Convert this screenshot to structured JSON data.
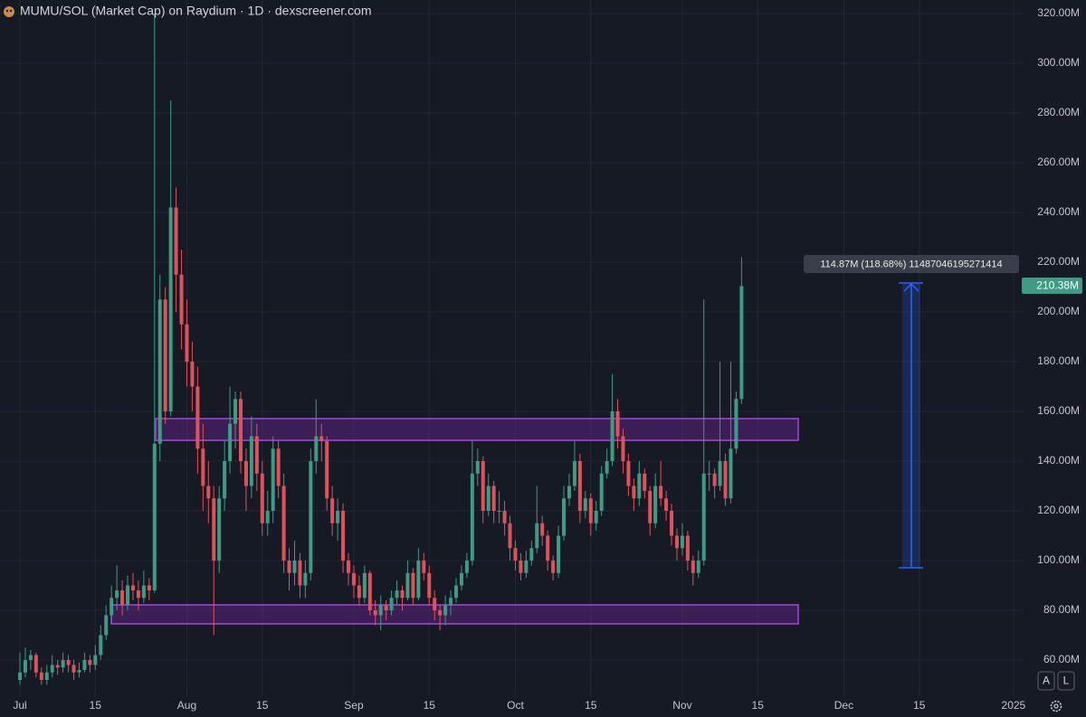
{
  "chart_data": {
    "type": "candlestick",
    "title": "MUMU/SOL (Market Cap) on Raydium · 1D · dexscreener.com",
    "up_color": "#3d9c83",
    "down_color": "#e0525b",
    "grid": true,
    "ylim": [
      45.45,
      325.45
    ],
    "yticks": [
      {
        "value": 60,
        "label": "60.00M"
      },
      {
        "value": 80,
        "label": "80.00M"
      },
      {
        "value": 100,
        "label": "100.00M"
      },
      {
        "value": 120,
        "label": "120.00M"
      },
      {
        "value": 140,
        "label": "140.00M"
      },
      {
        "value": 160,
        "label": "160.00M"
      },
      {
        "value": 180,
        "label": "180.00M"
      },
      {
        "value": 200,
        "label": "200.00M"
      },
      {
        "value": 220,
        "label": "220.00M"
      },
      {
        "value": 240,
        "label": "240.00M"
      },
      {
        "value": 260,
        "label": "260.00M"
      },
      {
        "value": 280,
        "label": "280.00M"
      },
      {
        "value": 300,
        "label": "300.00M"
      },
      {
        "value": 320,
        "label": "320.00M"
      }
    ],
    "xlim": [
      -3.7,
      186.2
    ],
    "xticks": [
      {
        "value": 0,
        "label": "Jul"
      },
      {
        "value": 14,
        "label": "15"
      },
      {
        "value": 31,
        "label": "Aug"
      },
      {
        "value": 45,
        "label": "15"
      },
      {
        "value": 62,
        "label": "Sep"
      },
      {
        "value": 76,
        "label": "15"
      },
      {
        "value": 92,
        "label": "Oct"
      },
      {
        "value": 106,
        "label": "15"
      },
      {
        "value": 123,
        "label": "Nov"
      },
      {
        "value": 137,
        "label": "15"
      },
      {
        "value": 153,
        "label": "Dec"
      },
      {
        "value": 167,
        "label": "15"
      },
      {
        "value": 184.5,
        "label": "2025"
      }
    ],
    "x": [
      0,
      1,
      2,
      3,
      4,
      5,
      6,
      7,
      8,
      9,
      10,
      11,
      12,
      13,
      14,
      15,
      16,
      17,
      18,
      19,
      20,
      21,
      22,
      23,
      24,
      25,
      26,
      27,
      28,
      29,
      30,
      31,
      32,
      33,
      34,
      35,
      36,
      37,
      38,
      39,
      40,
      41,
      42,
      43,
      44,
      45,
      46,
      47,
      48,
      49,
      50,
      51,
      52,
      53,
      54,
      55,
      56,
      57,
      58,
      59,
      60,
      61,
      62,
      63,
      64,
      65,
      66,
      67,
      68,
      69,
      70,
      71,
      72,
      73,
      74,
      75,
      76,
      77,
      78,
      79,
      80,
      81,
      82,
      83,
      84,
      85,
      86,
      87,
      88,
      89,
      90,
      91,
      92,
      93,
      94,
      95,
      96,
      97,
      98,
      99,
      100,
      101,
      102,
      103,
      104,
      105,
      106,
      107,
      108,
      109,
      110,
      111,
      112,
      113,
      114,
      115,
      116,
      117,
      118,
      119,
      120,
      121,
      122,
      123,
      124,
      125,
      126,
      127,
      128,
      129,
      130,
      131,
      132,
      133,
      134
    ],
    "candles": [
      [
        52,
        63,
        50,
        55
      ],
      [
        55,
        65,
        53,
        60
      ],
      [
        60,
        64,
        56,
        62
      ],
      [
        62,
        63,
        53,
        55
      ],
      [
        55,
        57,
        50,
        52
      ],
      [
        52,
        58,
        50,
        55
      ],
      [
        55,
        62,
        53,
        58
      ],
      [
        58,
        60,
        54,
        57
      ],
      [
        57,
        63,
        55,
        60
      ],
      [
        60,
        62,
        55,
        58
      ],
      [
        58,
        60,
        52,
        55
      ],
      [
        55,
        59,
        53,
        56
      ],
      [
        56,
        63,
        55,
        60
      ],
      [
        60,
        62,
        55,
        58
      ],
      [
        58,
        66,
        56,
        62
      ],
      [
        62,
        74,
        60,
        70
      ],
      [
        70,
        82,
        68,
        78
      ],
      [
        78,
        90,
        75,
        85
      ],
      [
        85,
        98,
        80,
        88
      ],
      [
        88,
        92,
        78,
        82
      ],
      [
        82,
        94,
        80,
        90
      ],
      [
        90,
        95,
        84,
        88
      ],
      [
        88,
        92,
        80,
        85
      ],
      [
        85,
        96,
        83,
        90
      ],
      [
        90,
        93,
        84,
        88
      ],
      [
        88,
        320,
        87,
        147
      ],
      [
        147,
        215,
        140,
        205
      ],
      [
        205,
        210,
        155,
        160
      ],
      [
        160,
        285,
        158,
        242
      ],
      [
        242,
        250,
        200,
        215
      ],
      [
        215,
        225,
        185,
        195
      ],
      [
        195,
        205,
        170,
        180
      ],
      [
        180,
        188,
        160,
        170
      ],
      [
        170,
        178,
        135,
        145
      ],
      [
        145,
        155,
        120,
        130
      ],
      [
        130,
        140,
        115,
        125
      ],
      [
        125,
        130,
        70,
        100
      ],
      [
        100,
        130,
        95,
        125
      ],
      [
        125,
        148,
        120,
        140
      ],
      [
        140,
        170,
        135,
        155
      ],
      [
        155,
        168,
        145,
        165
      ],
      [
        165,
        168,
        135,
        140
      ],
      [
        140,
        145,
        120,
        130
      ],
      [
        130,
        158,
        125,
        150
      ],
      [
        150,
        155,
        128,
        135
      ],
      [
        135,
        140,
        110,
        115
      ],
      [
        115,
        128,
        110,
        120
      ],
      [
        120,
        150,
        115,
        145
      ],
      [
        145,
        148,
        125,
        130
      ],
      [
        130,
        135,
        95,
        100
      ],
      [
        100,
        105,
        88,
        95
      ],
      [
        95,
        108,
        90,
        100
      ],
      [
        100,
        103,
        85,
        90
      ],
      [
        90,
        100,
        85,
        95
      ],
      [
        95,
        145,
        92,
        140
      ],
      [
        140,
        165,
        135,
        150
      ],
      [
        150,
        155,
        140,
        148
      ],
      [
        148,
        150,
        120,
        125
      ],
      [
        125,
        130,
        110,
        115
      ],
      [
        115,
        125,
        108,
        120
      ],
      [
        120,
        123,
        95,
        100
      ],
      [
        100,
        103,
        90,
        95
      ],
      [
        95,
        98,
        85,
        90
      ],
      [
        90,
        94,
        82,
        85
      ],
      [
        85,
        98,
        83,
        95
      ],
      [
        95,
        96,
        78,
        80
      ],
      [
        80,
        84,
        74,
        78
      ],
      [
        78,
        86,
        72,
        82
      ],
      [
        82,
        84,
        76,
        80
      ],
      [
        80,
        88,
        78,
        85
      ],
      [
        85,
        92,
        82,
        88
      ],
      [
        88,
        90,
        80,
        85
      ],
      [
        85,
        100,
        84,
        95
      ],
      [
        95,
        97,
        82,
        85
      ],
      [
        85,
        105,
        84,
        100
      ],
      [
        100,
        103,
        92,
        95
      ],
      [
        95,
        98,
        82,
        85
      ],
      [
        85,
        88,
        76,
        80
      ],
      [
        80,
        82,
        72,
        78
      ],
      [
        78,
        86,
        74,
        82
      ],
      [
        82,
        88,
        78,
        85
      ],
      [
        85,
        93,
        83,
        90
      ],
      [
        90,
        98,
        88,
        95
      ],
      [
        95,
        103,
        93,
        100
      ],
      [
        100,
        148,
        98,
        135
      ],
      [
        135,
        145,
        130,
        140
      ],
      [
        140,
        142,
        115,
        120
      ],
      [
        120,
        135,
        118,
        130
      ],
      [
        130,
        132,
        115,
        120
      ],
      [
        120,
        128,
        115,
        120
      ],
      [
        120,
        124,
        110,
        115
      ],
      [
        115,
        118,
        100,
        105
      ],
      [
        105,
        108,
        96,
        100
      ],
      [
        100,
        103,
        92,
        95
      ],
      [
        95,
        104,
        93,
        100
      ],
      [
        100,
        108,
        98,
        105
      ],
      [
        105,
        130,
        103,
        115
      ],
      [
        115,
        118,
        106,
        110
      ],
      [
        110,
        112,
        96,
        100
      ],
      [
        100,
        102,
        92,
        95
      ],
      [
        95,
        114,
        93,
        110
      ],
      [
        110,
        130,
        108,
        125
      ],
      [
        125,
        135,
        122,
        130
      ],
      [
        130,
        148,
        128,
        140
      ],
      [
        140,
        143,
        115,
        120
      ],
      [
        120,
        128,
        117,
        125
      ],
      [
        125,
        127,
        110,
        115
      ],
      [
        115,
        124,
        112,
        120
      ],
      [
        120,
        138,
        118,
        135
      ],
      [
        135,
        145,
        133,
        140
      ],
      [
        140,
        175,
        138,
        160
      ],
      [
        160,
        165,
        145,
        150
      ],
      [
        150,
        153,
        135,
        140
      ],
      [
        140,
        143,
        126,
        130
      ],
      [
        130,
        133,
        120,
        125
      ],
      [
        125,
        140,
        122,
        135
      ],
      [
        135,
        137,
        125,
        128
      ],
      [
        128,
        130,
        110,
        115
      ],
      [
        115,
        135,
        113,
        130
      ],
      [
        130,
        140,
        122,
        125
      ],
      [
        125,
        128,
        116,
        120
      ],
      [
        120,
        123,
        106,
        110
      ],
      [
        110,
        113,
        100,
        105
      ],
      [
        105,
        115,
        102,
        110
      ],
      [
        110,
        112,
        96,
        100
      ],
      [
        100,
        102,
        90,
        95
      ],
      [
        95,
        104,
        93,
        100
      ],
      [
        100,
        205,
        98,
        135
      ],
      [
        135,
        140,
        128,
        135
      ],
      [
        135,
        137,
        125,
        130
      ],
      [
        130,
        180,
        128,
        140
      ],
      [
        140,
        143,
        122,
        125
      ],
      [
        125,
        180,
        123,
        145
      ],
      [
        145,
        168,
        143,
        165
      ],
      [
        165,
        222,
        163,
        210.38
      ]
    ],
    "last_price_label": "210.38M",
    "measure_label": "114.87M (118.68%) 11487046195271414",
    "buttons": [
      "A",
      "L"
    ]
  }
}
